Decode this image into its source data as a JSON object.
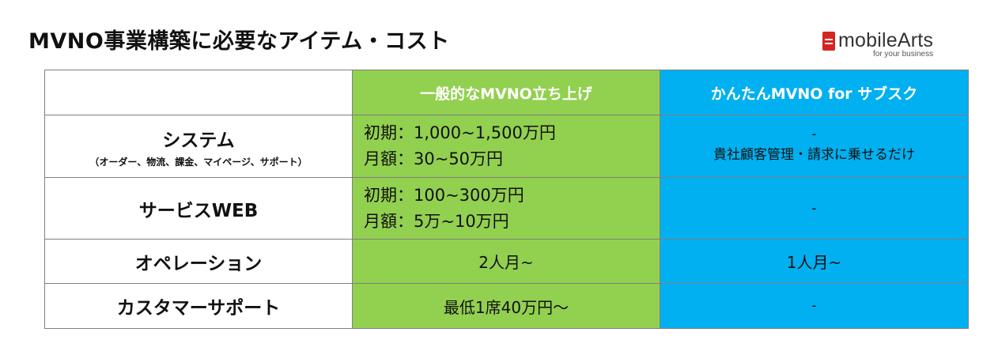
{
  "title": "MVNO事業構築に必要なアイテム・コスト",
  "logo": {
    "name": "mobileArts",
    "tagline": "for your business",
    "icon": "sim-card-logo-icon",
    "brand_color": "#d6241f"
  },
  "colors": {
    "green": "#92d050",
    "blue": "#00b0f0",
    "border": "#7f7f7f"
  },
  "table": {
    "headers": [
      "",
      "一般的なMVNO立ち上げ",
      "かんたんMVNO for サブスク"
    ],
    "rows": [
      {
        "label": "システム",
        "sublabel": "（オーダー、物流、課金、マイページ、サポート）",
        "general": [
          "初期：1,000~1,500万円",
          "月額：30~50万円"
        ],
        "easy": [
          "-",
          "貴社顧客管理・請求に乗せるだけ"
        ]
      },
      {
        "label": "サービスWEB",
        "general": [
          "初期：100~300万円",
          "月額：5万~10万円"
        ],
        "easy": [
          "-"
        ]
      },
      {
        "label": "オペレーション",
        "general": [
          "2人月~"
        ],
        "easy": [
          "1人月~"
        ]
      },
      {
        "label": "カスタマーサポート",
        "general": [
          "最低1席40万円～"
        ],
        "easy": [
          "-"
        ]
      }
    ]
  }
}
